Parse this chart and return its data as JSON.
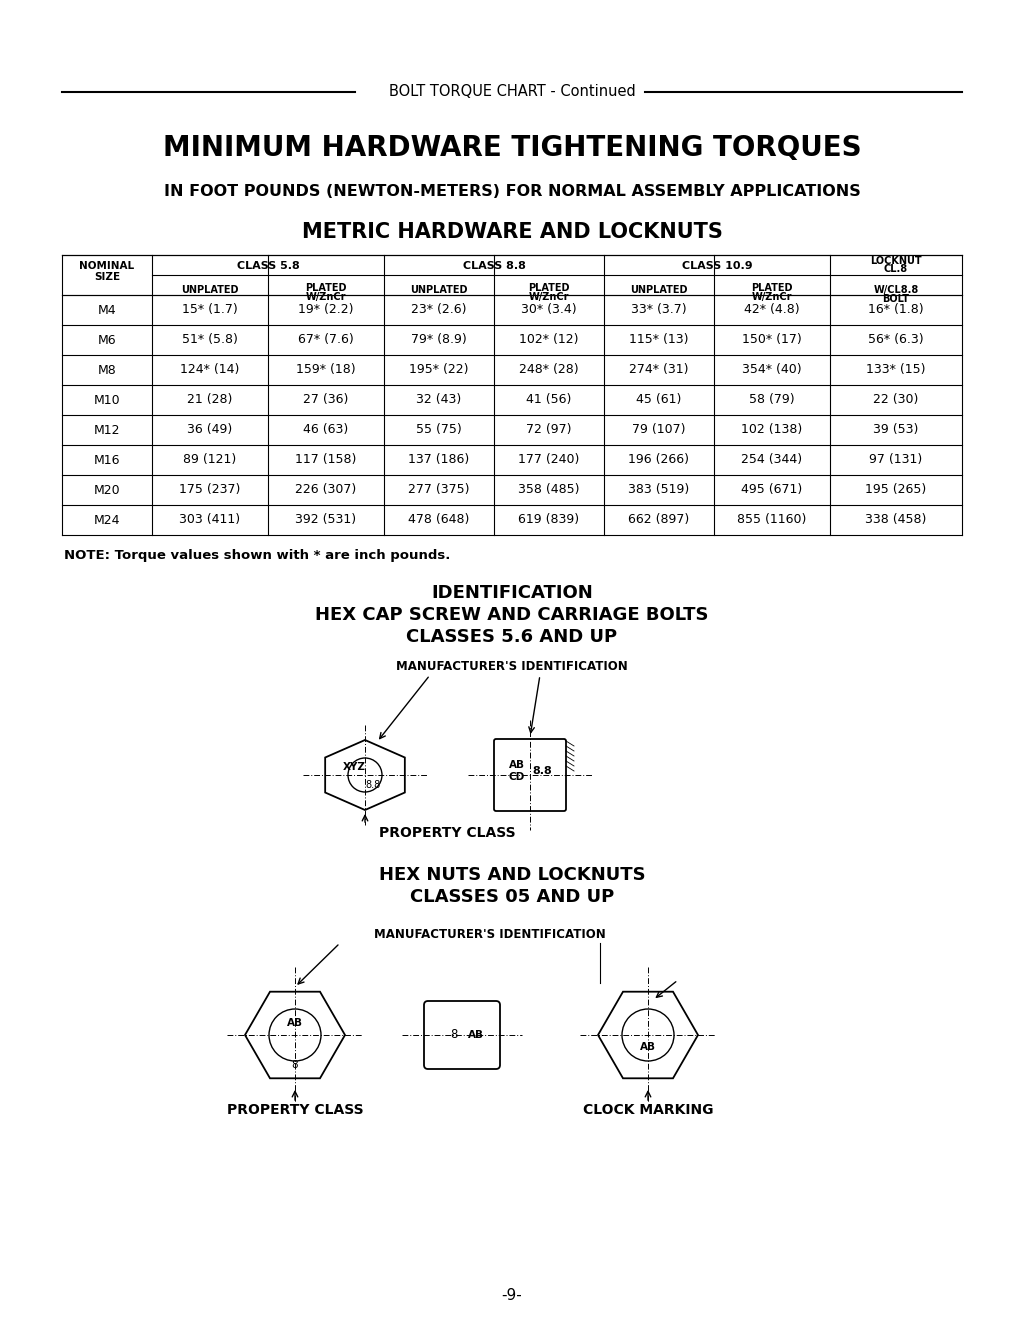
{
  "page_title": "BOLT TORQUE CHART - Continued",
  "main_title": "MINIMUM HARDWARE TIGHTENING TORQUES",
  "subtitle": "IN FOOT POUNDS (NEWTON-METERS) FOR NORMAL ASSEMBLY APPLICATIONS",
  "table_title": "METRIC HARDWARE AND LOCKNUTS",
  "rows": [
    [
      "M4",
      "15* (1.7)",
      "19* (2.2)",
      "23* (2.6)",
      "30* (3.4)",
      "33* (3.7)",
      "42* (4.8)",
      "16* (1.8)"
    ],
    [
      "M6",
      "51* (5.8)",
      "67* (7.6)",
      "79* (8.9)",
      "102* (12)",
      "115* (13)",
      "150* (17)",
      "56* (6.3)"
    ],
    [
      "M8",
      "124* (14)",
      "159* (18)",
      "195* (22)",
      "248* (28)",
      "274* (31)",
      "354* (40)",
      "133* (15)"
    ],
    [
      "M10",
      "21 (28)",
      "27 (36)",
      "32 (43)",
      "41 (56)",
      "45 (61)",
      "58 (79)",
      "22 (30)"
    ],
    [
      "M12",
      "36 (49)",
      "46 (63)",
      "55 (75)",
      "72 (97)",
      "79 (107)",
      "102 (138)",
      "39 (53)"
    ],
    [
      "M16",
      "89 (121)",
      "117 (158)",
      "137 (186)",
      "177 (240)",
      "196 (266)",
      "254 (344)",
      "97 (131)"
    ],
    [
      "M20",
      "175 (237)",
      "226 (307)",
      "277 (375)",
      "358 (485)",
      "383 (519)",
      "495 (671)",
      "195 (265)"
    ],
    [
      "M24",
      "303 (411)",
      "392 (531)",
      "478 (648)",
      "619 (839)",
      "662 (897)",
      "855 (1160)",
      "338 (458)"
    ]
  ],
  "note": "NOTE: Torque values shown with * are inch pounds.",
  "id_title1": "IDENTIFICATION",
  "id_title2": "HEX CAP SCREW AND CARRIAGE BOLTS",
  "id_title3": "CLASSES 5.6 AND UP",
  "id_title4": "HEX NUTS AND LOCKNUTS",
  "id_title5": "CLASSES 05 AND UP",
  "mfr_id": "MANUFACTURER'S IDENTIFICATION",
  "prop_class": "PROPERTY CLASS",
  "clock_marking": "CLOCK MARKING",
  "page_num": "-9-",
  "bg_color": "#ffffff",
  "text_color": "#000000"
}
